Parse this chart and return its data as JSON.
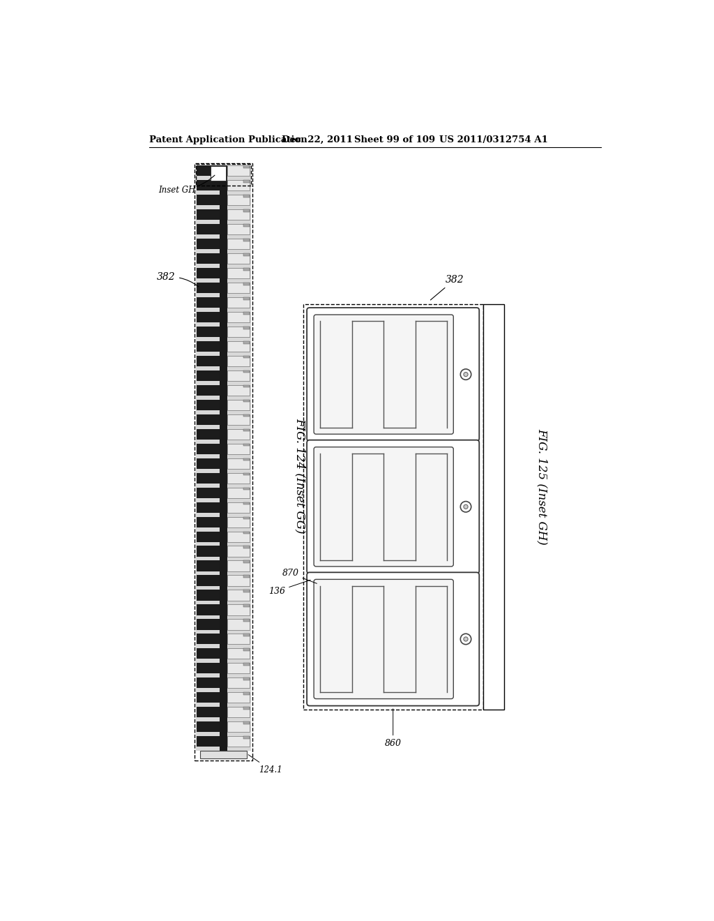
{
  "bg_color": "#ffffff",
  "header_text": "Patent Application Publication",
  "header_date": "Dec. 22, 2011",
  "header_sheet": "Sheet 99 of 109",
  "header_patent": "US 2011/0312754 A1",
  "fig124_label": "FIG. 124 (Inset GG)",
  "fig125_label": "FIG. 125 (Inset GH)",
  "label_382_left": "382",
  "label_382_right": "382",
  "label_124_1": "124.1",
  "label_inset_gh": "Inset GH",
  "label_870": "870",
  "label_136": "136",
  "label_860": "860"
}
